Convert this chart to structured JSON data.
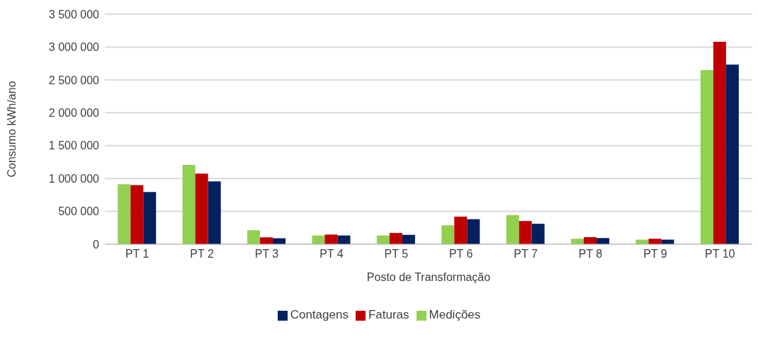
{
  "chart_data": {
    "type": "bar",
    "xlabel": "Posto de Transformação",
    "ylabel": "Consumo kWh/ano",
    "categories": [
      "PT 1",
      "PT 2",
      "PT 3",
      "PT 4",
      "PT 5",
      "PT 6",
      "PT 7",
      "PT 8",
      "PT 9",
      "PT 10"
    ],
    "series": [
      {
        "name": "Medições",
        "color": "#92d050",
        "values": [
          913000,
          1206000,
          213000,
          133000,
          133000,
          287000,
          444000,
          84000,
          70000,
          2648000
        ]
      },
      {
        "name": "Faturas",
        "color": "#c00000",
        "values": [
          899000,
          1073000,
          105000,
          147000,
          171000,
          420000,
          353000,
          108000,
          84000,
          3080000
        ]
      },
      {
        "name": "Contagens",
        "color": "#002060",
        "values": [
          794000,
          955000,
          91000,
          133000,
          143000,
          381000,
          311000,
          94000,
          70000,
          2733000
        ]
      }
    ],
    "ylim": [
      0,
      3500000
    ],
    "yticks": [
      {
        "value": 0,
        "label": "0"
      },
      {
        "value": 500000,
        "label": "500 000"
      },
      {
        "value": 1000000,
        "label": "1 000 000"
      },
      {
        "value": 1500000,
        "label": "1 500 000"
      },
      {
        "value": 2000000,
        "label": "2 000 000"
      },
      {
        "value": 2500000,
        "label": "2 500 000"
      },
      {
        "value": 3000000,
        "label": "3 000 000"
      },
      {
        "value": 3500000,
        "label": "3 500 000"
      }
    ],
    "grid": "y",
    "legend": "bottom"
  }
}
